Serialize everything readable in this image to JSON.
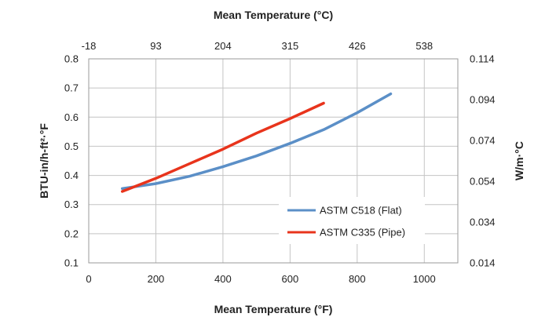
{
  "chart_data": {
    "type": "line",
    "xlabel": "Mean Temperature (°F)",
    "x2label": "Mean Temperature (°C)",
    "ylabel": "BTU-in/h-ft²·°F",
    "y2label": "W/m·°C",
    "xlim": [
      0,
      1100
    ],
    "ylim": [
      0.1,
      0.8
    ],
    "xticks": [
      "0",
      "200",
      "400",
      "600",
      "800",
      "1000"
    ],
    "yticks": [
      "0.1",
      "0.2",
      "0.3",
      "0.4",
      "0.5",
      "0.6",
      "0.7",
      "0.8"
    ],
    "x2ticks": [
      {
        "label": "-18",
        "x_f": 0
      },
      {
        "label": "93",
        "x_f": 200
      },
      {
        "label": "204",
        "x_f": 400
      },
      {
        "label": "315",
        "x_f": 600
      },
      {
        "label": "426",
        "x_f": 800
      },
      {
        "label": "538",
        "x_f": 1000
      }
    ],
    "y2ticks": [
      {
        "label": "0.114",
        "y": 0.8
      },
      {
        "label": "0.094",
        "y": 0.66
      },
      {
        "label": "0.074",
        "y": 0.52
      },
      {
        "label": "0.054",
        "y": 0.38
      },
      {
        "label": "0.034",
        "y": 0.24
      },
      {
        "label": "0.014",
        "y": 0.1
      }
    ],
    "grid": true,
    "legend_position": "bottom-right",
    "series": [
      {
        "name": "ASTM C518 (Flat)",
        "color": "#5b8fc7",
        "x": [
          100,
          200,
          300,
          400,
          500,
          600,
          700,
          800,
          900
        ],
        "y": [
          0.355,
          0.372,
          0.397,
          0.43,
          0.467,
          0.51,
          0.557,
          0.615,
          0.68
        ]
      },
      {
        "name": "ASTM C335 (Pipe)",
        "color": "#e8341c",
        "x": [
          100,
          200,
          300,
          400,
          500,
          600,
          700
        ],
        "y": [
          0.345,
          0.39,
          0.44,
          0.49,
          0.545,
          0.595,
          0.648
        ]
      }
    ]
  }
}
